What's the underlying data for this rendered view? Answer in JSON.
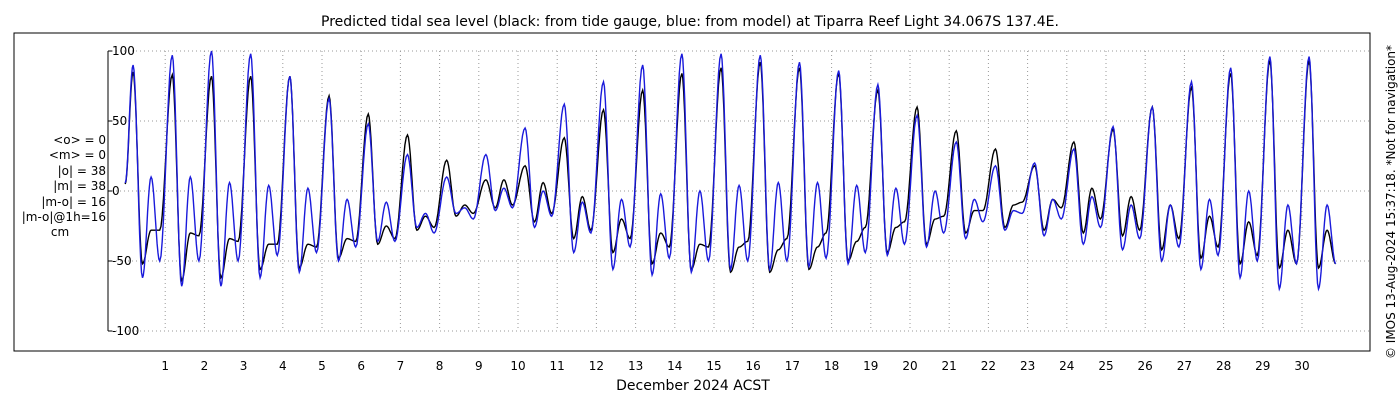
{
  "title": "Predicted tidal sea level (black: from tide gauge, blue: from model) at Tiparra Reef Light 34.067S 137.4E.",
  "xlabel": "December 2024 ACST",
  "stats": [
    "<o> = 0",
    "<m> = 0",
    "|o| = 38",
    "|m| = 38",
    "|m-o| = 16",
    "|m-o|@1h=16"
  ],
  "stats_unit": "cm",
  "side_note": "© IMOS 13-Aug-2024 15:37:18. *Not for navigation*",
  "colors": {
    "observed": "#000000",
    "model": "#1a1adb",
    "grid": "#999999"
  },
  "chart_data": {
    "type": "line",
    "ylim": [
      -100,
      100
    ],
    "xlim": [
      0,
      31.2
    ],
    "yticks": [
      -100,
      -50,
      0,
      50,
      100
    ],
    "xticks": [
      1,
      2,
      3,
      4,
      5,
      6,
      7,
      8,
      9,
      10,
      11,
      12,
      13,
      14,
      15,
      16,
      17,
      18,
      19,
      20,
      21,
      22,
      23,
      24,
      25,
      26,
      27,
      28,
      29,
      30
    ],
    "grid": true,
    "series": [
      {
        "name": "tide gauge",
        "color": "#000000",
        "daily": {
          "hh": [
            85,
            83,
            82,
            82,
            82,
            68,
            55,
            40,
            22,
            8,
            18,
            38,
            58,
            72,
            84,
            88,
            92,
            88,
            84,
            72,
            60,
            43,
            30,
            18,
            35,
            44,
            60,
            74,
            84,
            93
          ],
          "lh": [
            -28,
            -30,
            -34,
            -38,
            -38,
            -34,
            -25,
            -18,
            -10,
            8,
            6,
            -4,
            -20,
            -30,
            -38,
            -40,
            -42,
            -40,
            -36,
            -26,
            -20,
            -14,
            -10,
            -6,
            2,
            -4,
            -10,
            -18,
            -22,
            -28
          ],
          "hl": [
            -52,
            -64,
            -62,
            -56,
            -55,
            -48,
            -38,
            -28,
            -18,
            -12,
            -22,
            -34,
            -44,
            -52,
            -56,
            -58,
            -58,
            -56,
            -50,
            -44,
            -38,
            -30,
            -26,
            -28,
            -30,
            -32,
            -42,
            -48,
            -52,
            -55
          ],
          "ll": [
            -28,
            -32,
            -36,
            -38,
            -40,
            -36,
            -34,
            -26,
            -16,
            -10,
            -16,
            -28,
            -34,
            -40,
            -40,
            -36,
            -34,
            -30,
            -26,
            -22,
            -18,
            -14,
            -8,
            -12,
            -20,
            -28,
            -34,
            -40,
            -46,
            -52
          ]
        }
      },
      {
        "name": "model",
        "color": "#1a1adb",
        "daily": {
          "hh": [
            90,
            97,
            100,
            98,
            82,
            66,
            48,
            26,
            10,
            26,
            45,
            62,
            78,
            90,
            98,
            98,
            97,
            92,
            86,
            76,
            54,
            35,
            18,
            20,
            30,
            46,
            60,
            78,
            88,
            96
          ],
          "lh": [
            10,
            10,
            6,
            4,
            2,
            -6,
            -8,
            -16,
            -12,
            2,
            0,
            -8,
            -6,
            -2,
            0,
            4,
            6,
            6,
            4,
            2,
            0,
            -6,
            -14,
            -6,
            -4,
            -10,
            -10,
            -6,
            0,
            -10
          ],
          "hl": [
            -62,
            -68,
            -68,
            -62,
            -58,
            -50,
            -36,
            -26,
            -16,
            -14,
            -26,
            -44,
            -56,
            -60,
            -58,
            -56,
            -56,
            -54,
            -52,
            -46,
            -40,
            -34,
            -28,
            -32,
            -38,
            -42,
            -50,
            -56,
            -62,
            -70
          ],
          "ll": [
            -50,
            -50,
            -50,
            -46,
            -44,
            -40,
            -36,
            -30,
            -20,
            -12,
            -18,
            -30,
            -40,
            -48,
            -50,
            -50,
            -50,
            -48,
            -44,
            -38,
            -30,
            -22,
            -16,
            -20,
            -26,
            -34,
            -40,
            -46,
            -50,
            -52
          ]
        }
      }
    ]
  }
}
